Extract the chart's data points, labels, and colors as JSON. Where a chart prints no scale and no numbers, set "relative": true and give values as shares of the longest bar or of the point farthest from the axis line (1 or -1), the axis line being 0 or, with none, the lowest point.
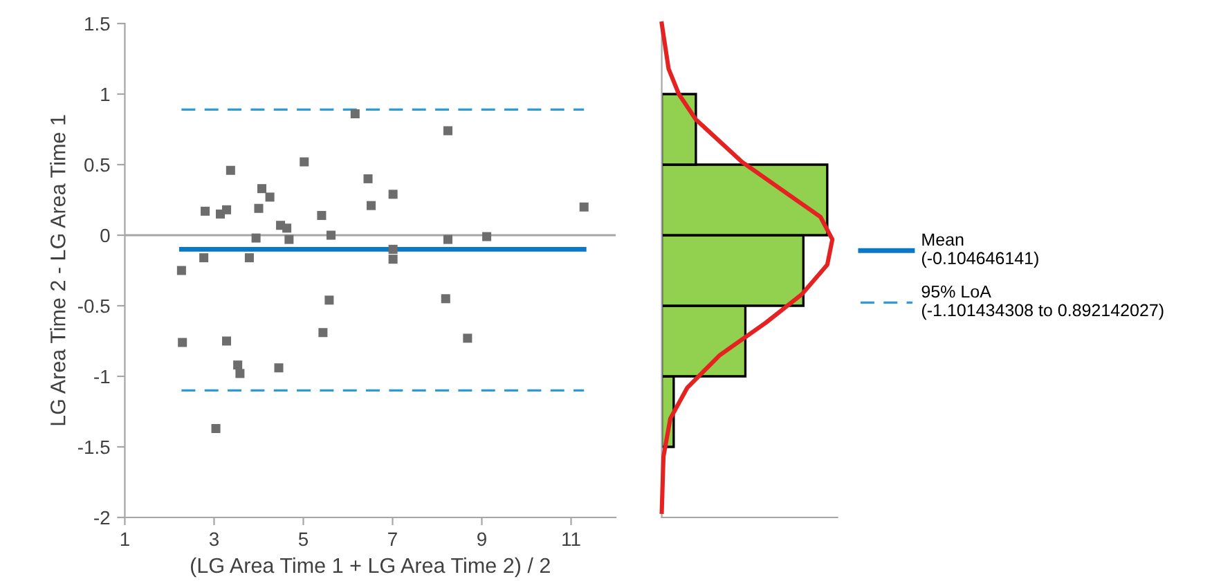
{
  "chart_data": [
    {
      "type": "scatter",
      "xlabel": "(LG Area Time 1 + LG Area Time 2) / 2",
      "ylabel": "LG Area Time 2 - LG Area Time 1",
      "xlim": [
        1,
        12
      ],
      "xticks": [
        1,
        3,
        5,
        7,
        9,
        11
      ],
      "ylim": [
        -2,
        1.5
      ],
      "yticks": [
        -2,
        -1.5,
        -1,
        -0.5,
        0,
        0.5,
        1,
        1.5
      ],
      "grid": false,
      "legend": "right",
      "ref_lines": [
        {
          "axis": "y",
          "value": 0,
          "color": "#a6a6a6"
        }
      ],
      "series": [
        {
          "type": "scatter",
          "marker": "square",
          "color": "#6d6d6d",
          "x": [
            2.27,
            2.29,
            2.8,
            2.77,
            3.04,
            3.14,
            3.28,
            3.37,
            3.28,
            3.53,
            3.58,
            3.79,
            3.94,
            4.0,
            4.07,
            4.25,
            4.45,
            4.49,
            4.63,
            4.68,
            5.02,
            5.41,
            5.44,
            5.58,
            5.62,
            6.16,
            6.45,
            6.52,
            7.01,
            7.01,
            7.01,
            8.24,
            8.24,
            8.19,
            8.68,
            9.11,
            11.29
          ],
          "values": [
            -0.25,
            -0.76,
            0.17,
            -0.16,
            -1.37,
            0.15,
            0.18,
            0.46,
            -0.75,
            -0.92,
            -0.98,
            -0.16,
            -0.02,
            0.19,
            0.33,
            0.27,
            -0.94,
            0.07,
            0.05,
            -0.03,
            0.52,
            0.14,
            -0.69,
            -0.46,
            0.0,
            0.86,
            0.4,
            0.21,
            0.29,
            -0.1,
            -0.17,
            0.74,
            -0.03,
            -0.45,
            -0.73,
            -0.01,
            0.2
          ]
        },
        {
          "type": "line",
          "name": "Mean\n(-0.104646141)",
          "color": "#0a78c8",
          "line_style": "solid",
          "x": [
            2.27,
            11.29
          ],
          "values": [
            -0.1,
            -0.1
          ]
        },
        {
          "type": "line",
          "name": "95% LoA\n(-1.101434308 to 0.892142027)",
          "color": "#2e9bd6",
          "line_style": "dashed",
          "x": [
            2.27,
            11.29
          ],
          "values": [
            0.89,
            0.89
          ]
        },
        {
          "type": "line",
          "color": "#2e9bd6",
          "line_style": "dashed",
          "x": [
            2.27,
            11.29
          ],
          "values": [
            -1.1,
            -1.1
          ]
        }
      ]
    },
    {
      "type": "histogram",
      "orientation": "horizontal",
      "relative": true,
      "ylim": [
        -2,
        1.5
      ],
      "bins": [
        -1.5,
        -1,
        -0.5,
        0,
        0.5,
        1
      ],
      "values": [
        0.07,
        0.49,
        0.83,
        0.97,
        0.2
      ],
      "color": "#92d050",
      "series": [
        {
          "type": "line",
          "color": "#e52222",
          "x": [
            1.5,
            1.18,
            1.0,
            0.82,
            0.52,
            0.29,
            0.13,
            -0.03,
            -0.21,
            -0.42,
            -0.62,
            -0.85,
            -1.08,
            -1.3,
            -1.57,
            -1.96
          ],
          "values": [
            0,
            0.04,
            0.1,
            0.2,
            0.47,
            0.74,
            0.93,
            1,
            0.97,
            0.82,
            0.61,
            0.34,
            0.15,
            0.05,
            0.01,
            0
          ]
        }
      ]
    }
  ]
}
